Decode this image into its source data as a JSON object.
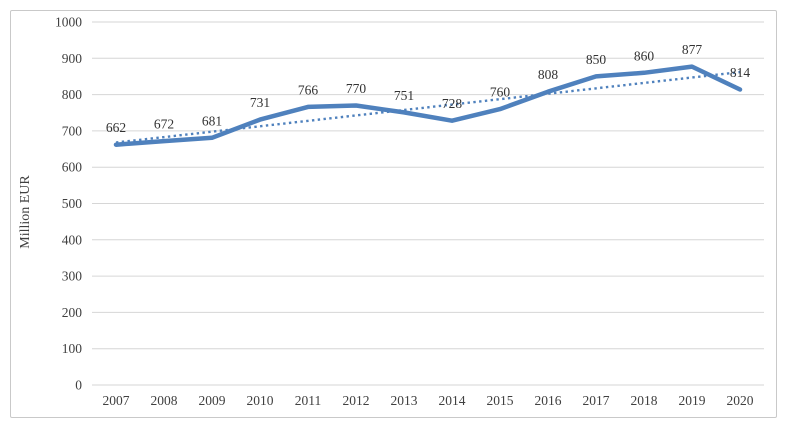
{
  "chart_data": {
    "type": "line",
    "title": "",
    "xlabel": "",
    "ylabel": "Million EUR",
    "categories": [
      "2007",
      "2008",
      "2009",
      "2010",
      "2011",
      "2012",
      "2013",
      "2014",
      "2015",
      "2016",
      "2017",
      "2018",
      "2019",
      "2020"
    ],
    "series": [
      {
        "name": "Million EUR",
        "values": [
          662,
          672,
          681,
          731,
          766,
          770,
          751,
          728,
          760,
          808,
          850,
          860,
          877,
          814
        ]
      }
    ],
    "data_labels": [
      662,
      672,
      681,
      731,
      766,
      770,
      751,
      728,
      760,
      808,
      850,
      860,
      877,
      814
    ],
    "trendline": {
      "type": "linear-dotted",
      "start_value": 668,
      "end_value": 862
    },
    "ylim": [
      0,
      1000
    ],
    "ytick_labels": [
      "0",
      "100",
      "200",
      "300",
      "400",
      "500",
      "600",
      "700",
      "800",
      "900",
      "1000"
    ],
    "grid": "horizontal",
    "legend": "none",
    "colors": {
      "series_line": "#4F81BD",
      "trendline": "#4F81BD",
      "gridline": "#D6D6D6",
      "axis_line": "#D6D6D6",
      "axis_text": "#404040",
      "data_label_text": "#333333",
      "frame_border": "#C9C9C9",
      "background": "#FFFFFF"
    }
  }
}
